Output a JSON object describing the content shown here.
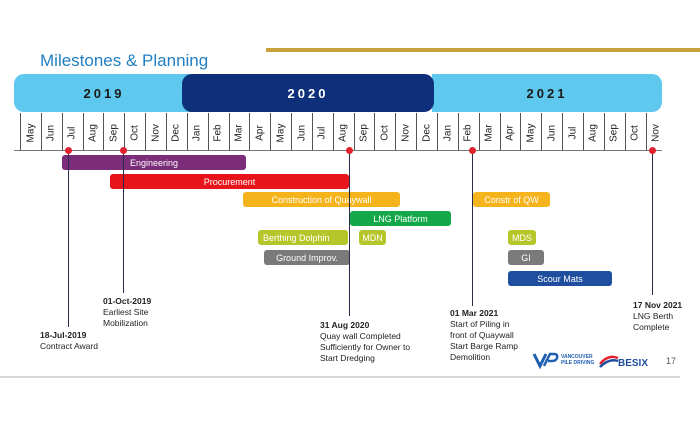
{
  "title": "Milestones & Planning",
  "years": [
    "2019",
    "2020",
    "2021"
  ],
  "months": [
    "May",
    "Jun",
    "Jul",
    "Aug",
    "Sep",
    "Oct",
    "Nov",
    "Dec",
    "Jan",
    "Feb",
    "Mar",
    "Apr",
    "May",
    "Jun",
    "Jul",
    "Aug",
    "Sep",
    "Oct",
    "Nov",
    "Dec",
    "Jan",
    "Feb",
    "Mar",
    "Apr",
    "May",
    "Jun",
    "Jul",
    "Aug",
    "Sep",
    "Oct",
    "Nov"
  ],
  "bars": [
    {
      "label": "Engineering",
      "color": "#7b2d7a"
    },
    {
      "label": "Procurement",
      "color": "#e8141c"
    },
    {
      "label": "Construction of Quaywall",
      "color": "#f6b41c"
    },
    {
      "label": "LNG Platform",
      "color": "#15a84a"
    },
    {
      "label": "Berthing Dolphin",
      "color": "#b5c62a"
    },
    {
      "label": "MDN",
      "color": "#b5c62a"
    },
    {
      "label": "Ground Improv.",
      "color": "#7a7a7a"
    },
    {
      "label": "Constr of QW",
      "color": "#f6b41c"
    },
    {
      "label": "MDS",
      "color": "#b5c62a"
    },
    {
      "label": "GI",
      "color": "#7a7a7a"
    },
    {
      "label": "Scour Mats",
      "color": "#1f4e9e"
    }
  ],
  "milestones": [
    {
      "date": "18-Jul-2019",
      "lines": [
        "Contract Award"
      ]
    },
    {
      "date": "01-Oct-2019",
      "lines": [
        "Earliest Site",
        "Mobilization"
      ]
    },
    {
      "date": "31 Aug 2020",
      "lines": [
        "Quay wall Completed",
        "Sufficiently for Owner to",
        "Start Dredging"
      ]
    },
    {
      "date": "01 Mar 2021",
      "lines": [
        "Start of Piling in",
        "front of Quaywall",
        "Start Barge Ramp",
        "Demolition"
      ]
    },
    {
      "date": "17 Nov 2021",
      "lines": [
        "LNG Berth",
        "Complete"
      ]
    }
  ],
  "logos": {
    "vp_text": "VANCOUVER PILE DRIVING",
    "besix_text": "BESIX"
  },
  "page_number": "17",
  "colors": {
    "title": "#1f7fc2",
    "year_light": "#5ec8ee",
    "year_dark": "#0e2f7a",
    "accent_line": "#c9a23c",
    "milestone_dot": "#e0202c"
  }
}
